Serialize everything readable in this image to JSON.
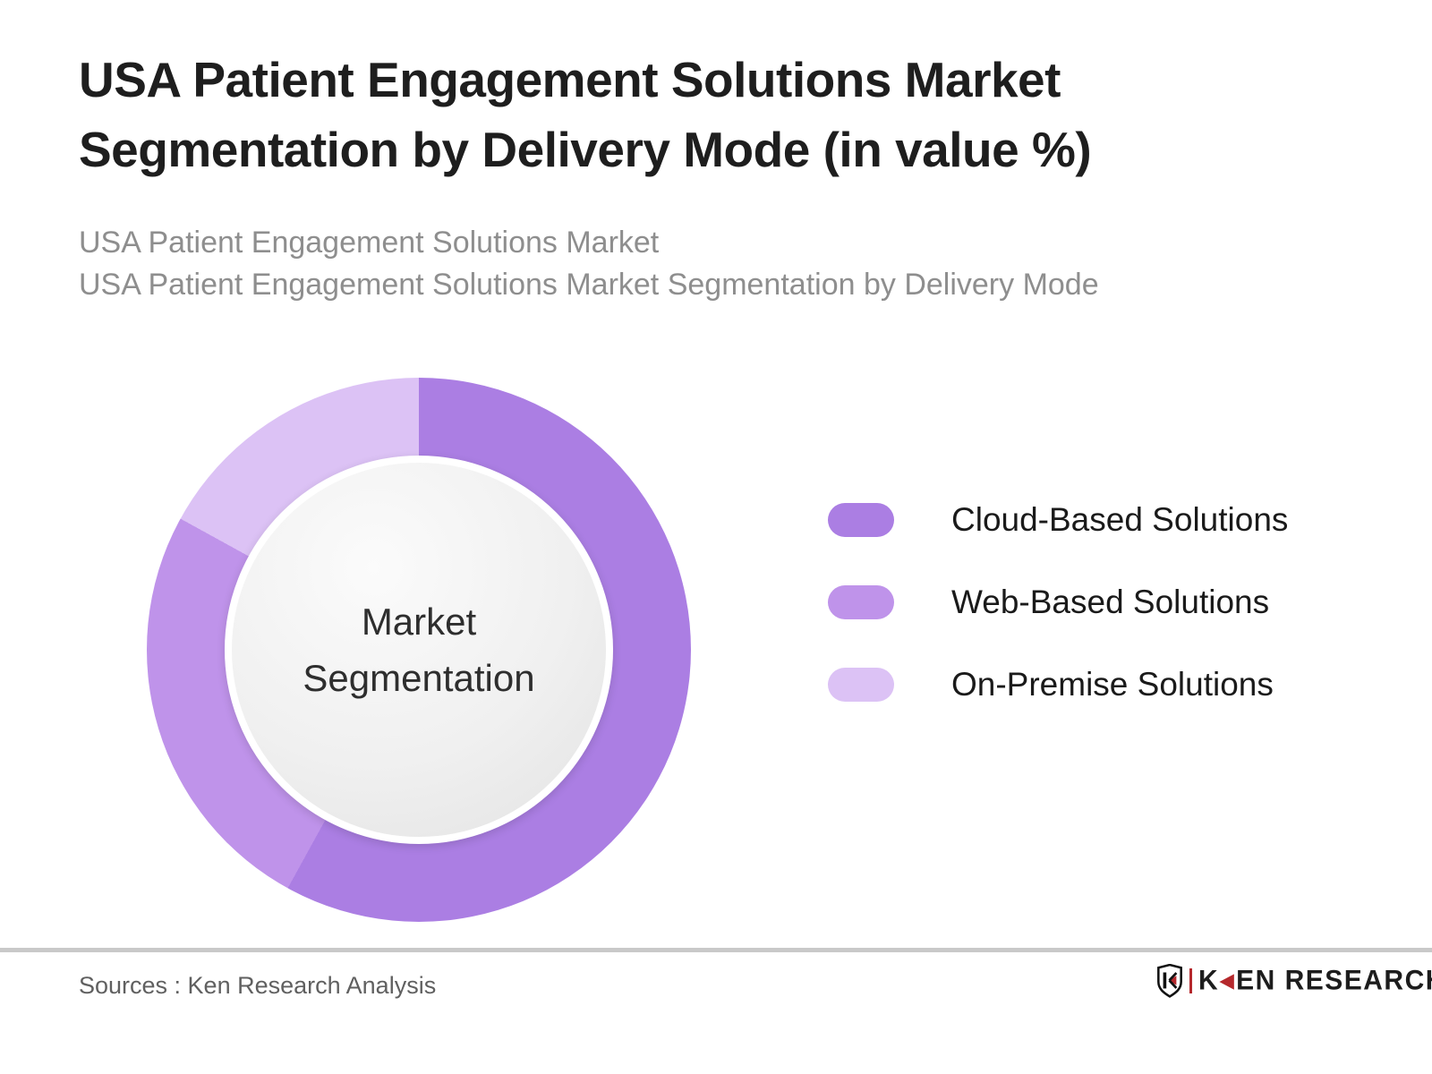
{
  "header": {
    "title_lines": [
      "USA Patient Engagement Solutions Market",
      "Segmentation by Delivery Mode (in value %)"
    ],
    "subtitle_lines": [
      "USA Patient Engagement Solutions Market",
      "USA Patient Engagement Solutions Market Segmentation by Delivery Mode"
    ]
  },
  "chart_data": {
    "type": "pie",
    "variant": "donut",
    "title": "USA Patient Engagement Solutions Market Segmentation by Delivery Mode (in value %)",
    "center_label_lines": [
      "Market",
      "Segmentation"
    ],
    "start_angle_deg": 0,
    "direction": "clockwise",
    "legend_position": "right",
    "grid": false,
    "series": [
      {
        "name": "Cloud-Based Solutions",
        "value": 58,
        "color": "#ab7ee3"
      },
      {
        "name": "Web-Based Solutions",
        "value": 25,
        "color": "#bf93ea"
      },
      {
        "name": "On-Premise Solutions",
        "value": 17,
        "color": "#dcc2f5"
      }
    ]
  },
  "colors": {
    "title_text": "#1e1e1e",
    "subtitle_text": "#8e8e8e",
    "legend_text": "#1a1a1a",
    "divider": "#c9c9c9",
    "brand_red": "#b5282c",
    "center_circle_fill": "#efefef"
  },
  "footer": {
    "sources": "Sources : Ken Research Analysis",
    "brand": {
      "k_prefix": "K",
      "arrow_glyph": "◀",
      "rest": "EN RESEARCH"
    }
  }
}
